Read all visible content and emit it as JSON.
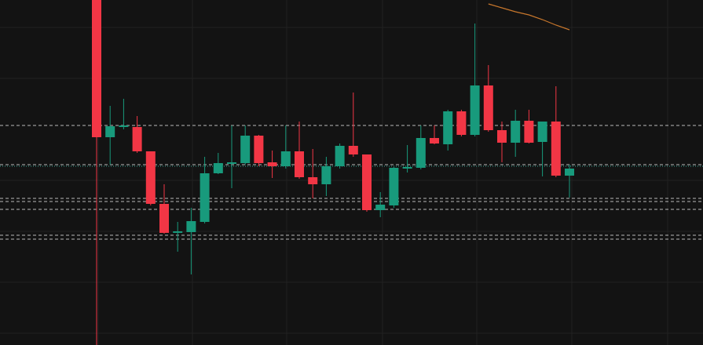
{
  "chart_data": {
    "type": "candlestick",
    "ylim": [
      0,
      440
    ],
    "up_color": "#189a7c",
    "down_color": "#f23645",
    "open": [
      440,
      265,
      278,
      278,
      247,
      180,
      143,
      144,
      157,
      219,
      231,
      232,
      267,
      233,
      228,
      247,
      214,
      205,
      228,
      254,
      243,
      172,
      178,
      225,
      226,
      264,
      256,
      298,
      268,
      331,
      274,
      258,
      286,
      259,
      285,
      216
    ],
    "high": [
      440,
      305,
      314,
      292,
      247,
      205,
      157,
      175,
      240,
      245,
      280,
      280,
      268,
      248,
      280,
      285,
      250,
      240,
      257,
      322,
      243,
      195,
      227,
      255,
      280,
      280,
      300,
      300,
      410,
      357,
      285,
      300,
      300,
      285,
      330,
      230
    ],
    "low": [
      0,
      230,
      275,
      245,
      178,
      142,
      119,
      90,
      155,
      218,
      200,
      230,
      228,
      213,
      225,
      212,
      187,
      190,
      225,
      240,
      170,
      163,
      175,
      220,
      224,
      256,
      248,
      266,
      266,
      272,
      233,
      240,
      257,
      215,
      214,
      188
    ],
    "close": [
      265,
      279,
      280,
      247,
      180,
      143,
      145,
      158,
      219,
      232,
      233,
      267,
      232,
      228,
      247,
      214,
      205,
      228,
      254,
      243,
      172,
      179,
      226,
      227,
      264,
      257,
      298,
      268,
      331,
      274,
      258,
      286,
      258,
      285,
      216,
      225
    ],
    "levels": [
      280,
      230,
      187,
      183,
      173,
      140,
      135
    ],
    "level_color": "#d8d8d8",
    "price_line": 228,
    "price_line_color": "#3aa89a",
    "ma": {
      "color": "#c8772c",
      "values": [
        null,
        null,
        null,
        null,
        null,
        null,
        null,
        null,
        null,
        null,
        null,
        null,
        null,
        null,
        null,
        null,
        null,
        null,
        null,
        null,
        null,
        null,
        null,
        null,
        null,
        null,
        null,
        null,
        null,
        435,
        430,
        425,
        421,
        415,
        408,
        402
      ]
    }
  }
}
